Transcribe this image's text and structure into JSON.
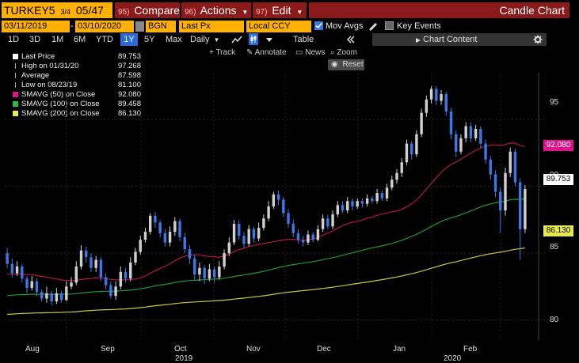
{
  "toolbar": {
    "ticker": "TURKEY5",
    "ticker_fraction": "3/4",
    "ticker_maturity": "05/47",
    "compare_num": "95)",
    "compare_label": "Compare",
    "actions_num": "96)",
    "actions_label": "Actions",
    "edit_num": "97)",
    "edit_label": "Edit",
    "chart_title": "Candle Chart"
  },
  "options": {
    "start_date": "03/11/2019",
    "end_date": "03/10/2020",
    "source": "BGN",
    "price_field": "Last Px",
    "currency": "Local CCY",
    "mov_avgs_label": "Mov Avgs",
    "key_events_label": "Key Events",
    "mov_avgs_checked": true,
    "key_events_checked": false
  },
  "periods": {
    "items": [
      "1D",
      "3D",
      "1M",
      "6M",
      "YTD",
      "1Y",
      "5Y",
      "Max"
    ],
    "selected": "1Y",
    "frequency": "Daily",
    "table_label": "Table",
    "chart_content_label": "Chart Content"
  },
  "tools": {
    "track": "Track",
    "annotate": "Annotate",
    "news": "News",
    "zoom": "Zoom",
    "reset": "Reset"
  },
  "legend": [
    {
      "label": "Last Price",
      "value": "89.753",
      "color": "#ffffff"
    },
    {
      "label": "High on 01/31/20",
      "value": "97.268",
      "color": ""
    },
    {
      "label": "Average",
      "value": "87.598",
      "color": ""
    },
    {
      "label": "Low on 08/23/19",
      "value": "81.100",
      "color": ""
    },
    {
      "label": "SMAVG (50)  on Close",
      "value": "92.080",
      "color": "#e0118a"
    },
    {
      "label": "SMAVG (100)  on Close",
      "value": "89.458",
      "color": "#2fb84a"
    },
    {
      "label": "SMAVG (200)  on Close",
      "value": "86.130",
      "color": "#e8e84a"
    }
  ],
  "price_tags": {
    "sma50": "92.080",
    "last": "89.753",
    "sma200": "86.130"
  },
  "colors": {
    "up": "#d0d0d0",
    "down": "#3b78e6",
    "sma50": "#b0154f",
    "sma100": "#1f9a2c",
    "sma200": "#c8c83a",
    "accent_orange": "#ffb000",
    "accent_red": "#8b1a1a"
  },
  "chart_data": {
    "type": "candlestick",
    "yticks": [
      "95",
      "90",
      "85",
      "80"
    ],
    "xticks": [
      "Aug",
      "Sep",
      "Oct",
      "Nov",
      "Dec",
      "Jan",
      "Feb"
    ],
    "years": [
      "2019",
      "2020"
    ],
    "ylim": [
      78.5,
      98.5
    ],
    "grid": true,
    "candles": [
      [
        0,
        85.0,
        84.2,
        85.4,
        83.9
      ],
      [
        1,
        84.2,
        83.5,
        84.6,
        83.2
      ],
      [
        2,
        83.5,
        84.0,
        84.4,
        83.3
      ],
      [
        3,
        84.0,
        83.1,
        84.2,
        82.8
      ],
      [
        4,
        83.1,
        82.4,
        83.3,
        82.0
      ],
      [
        5,
        82.4,
        82.9,
        83.3,
        82.2
      ],
      [
        6,
        82.9,
        82.1,
        83.1,
        81.8
      ],
      [
        7,
        82.1,
        81.6,
        82.3,
        81.4
      ],
      [
        8,
        81.6,
        82.0,
        82.5,
        81.3
      ],
      [
        9,
        82.0,
        81.4,
        82.2,
        81.1
      ],
      [
        10,
        81.4,
        82.0,
        82.4,
        81.2
      ],
      [
        11,
        82.0,
        81.5,
        82.2,
        81.3
      ],
      [
        12,
        81.5,
        82.5,
        82.9,
        81.4
      ],
      [
        13,
        82.5,
        82.8,
        83.2,
        82.3
      ],
      [
        14,
        82.8,
        84.0,
        84.4,
        82.6
      ],
      [
        15,
        84.0,
        85.2,
        85.6,
        83.8
      ],
      [
        16,
        85.2,
        84.7,
        85.5,
        84.3
      ],
      [
        17,
        84.7,
        83.9,
        85.0,
        83.6
      ],
      [
        18,
        83.9,
        84.5,
        84.8,
        83.6
      ],
      [
        19,
        84.5,
        83.2,
        84.7,
        82.9
      ],
      [
        20,
        83.2,
        82.6,
        83.5,
        82.3
      ],
      [
        21,
        82.6,
        81.8,
        82.9,
        81.6
      ],
      [
        22,
        81.8,
        82.5,
        82.9,
        81.5
      ],
      [
        23,
        82.5,
        83.6,
        84.0,
        82.3
      ],
      [
        24,
        83.6,
        83.1,
        83.9,
        82.8
      ],
      [
        25,
        83.1,
        84.3,
        84.7,
        82.9
      ],
      [
        26,
        84.3,
        85.1,
        85.4,
        84.1
      ],
      [
        27,
        85.1,
        86.0,
        86.3,
        84.9
      ],
      [
        28,
        86.0,
        86.6,
        86.9,
        85.8
      ],
      [
        29,
        86.6,
        87.8,
        88.0,
        86.4
      ],
      [
        30,
        87.8,
        87.3,
        88.1,
        86.9
      ],
      [
        31,
        87.3,
        86.5,
        87.5,
        86.2
      ],
      [
        32,
        86.5,
        85.8,
        86.8,
        85.5
      ],
      [
        33,
        85.8,
        86.6,
        87.0,
        85.5
      ],
      [
        34,
        86.6,
        87.4,
        87.7,
        86.3
      ],
      [
        35,
        87.4,
        86.2,
        87.6,
        85.9
      ],
      [
        36,
        86.2,
        85.3,
        86.5,
        85.0
      ],
      [
        37,
        85.3,
        84.6,
        85.6,
        84.2
      ],
      [
        38,
        84.6,
        83.4,
        84.9,
        83.0
      ],
      [
        39,
        83.4,
        83.9,
        84.3,
        82.9
      ],
      [
        40,
        83.9,
        83.1,
        84.1,
        82.7
      ],
      [
        41,
        83.1,
        83.8,
        84.2,
        82.9
      ],
      [
        42,
        83.8,
        83.2,
        84.0,
        82.8
      ],
      [
        43,
        83.2,
        84.0,
        84.4,
        83.0
      ],
      [
        44,
        84.0,
        85.0,
        85.3,
        83.8
      ],
      [
        45,
        85.0,
        85.8,
        86.2,
        84.8
      ],
      [
        46,
        85.8,
        87.2,
        87.5,
        85.6
      ],
      [
        47,
        87.2,
        86.3,
        87.5,
        86.0
      ],
      [
        48,
        86.3,
        85.7,
        86.6,
        85.4
      ],
      [
        49,
        85.7,
        86.8,
        87.1,
        85.5
      ],
      [
        50,
        86.8,
        86.1,
        87.0,
        85.8
      ],
      [
        51,
        86.1,
        86.9,
        87.3,
        85.9
      ],
      [
        52,
        86.9,
        87.6,
        87.9,
        86.7
      ],
      [
        53,
        87.6,
        88.5,
        88.9,
        87.4
      ],
      [
        54,
        88.5,
        89.4,
        89.6,
        88.3
      ],
      [
        55,
        89.4,
        89.0,
        89.7,
        88.6
      ],
      [
        56,
        89.0,
        88.0,
        89.2,
        87.7
      ],
      [
        57,
        88.0,
        87.2,
        88.3,
        86.9
      ],
      [
        58,
        87.2,
        86.5,
        87.5,
        86.2
      ],
      [
        59,
        86.5,
        86.0,
        86.8,
        85.7
      ],
      [
        60,
        86.0,
        85.8,
        86.3,
        85.5
      ],
      [
        61,
        85.8,
        86.4,
        86.7,
        85.6
      ],
      [
        62,
        86.4,
        86.0,
        86.6,
        85.8
      ],
      [
        63,
        86.0,
        86.8,
        87.1,
        85.9
      ],
      [
        64,
        86.8,
        87.6,
        87.9,
        86.6
      ],
      [
        65,
        87.6,
        87.0,
        87.9,
        86.8
      ],
      [
        66,
        87.0,
        87.9,
        88.2,
        86.8
      ],
      [
        67,
        87.9,
        88.6,
        88.9,
        87.7
      ],
      [
        68,
        88.6,
        88.2,
        88.9,
        88.0
      ],
      [
        69,
        88.2,
        88.9,
        89.2,
        88.0
      ],
      [
        70,
        88.9,
        88.5,
        89.1,
        88.2
      ],
      [
        71,
        88.5,
        88.9,
        89.1,
        88.3
      ],
      [
        72,
        88.9,
        88.7,
        89.1,
        88.4
      ],
      [
        73,
        88.7,
        89.1,
        89.4,
        88.5
      ],
      [
        74,
        89.1,
        88.9,
        89.3,
        88.7
      ],
      [
        75,
        88.9,
        89.5,
        89.8,
        88.7
      ],
      [
        76,
        89.5,
        89.1,
        89.7,
        88.9
      ],
      [
        77,
        89.1,
        89.9,
        90.2,
        88.9
      ],
      [
        78,
        89.9,
        90.5,
        90.8,
        89.7
      ],
      [
        79,
        90.5,
        91.0,
        91.3,
        90.2
      ],
      [
        80,
        91.0,
        91.8,
        92.1,
        90.7
      ],
      [
        81,
        91.8,
        93.2,
        93.5,
        91.6
      ],
      [
        82,
        93.2,
        92.4,
        93.4,
        92.0
      ],
      [
        83,
        92.4,
        93.9,
        94.2,
        92.2
      ],
      [
        84,
        93.9,
        95.5,
        95.8,
        93.7
      ],
      [
        85,
        95.5,
        96.5,
        96.8,
        95.2
      ],
      [
        86,
        96.5,
        97.3,
        97.5,
        96.2
      ],
      [
        87,
        97.3,
        96.4,
        97.5,
        96.1
      ],
      [
        88,
        96.4,
        96.9,
        97.2,
        96.1
      ],
      [
        89,
        96.9,
        95.6,
        97.1,
        95.3
      ],
      [
        90,
        95.6,
        93.9,
        95.9,
        93.5
      ],
      [
        91,
        93.9,
        92.6,
        94.2,
        92.2
      ],
      [
        92,
        92.6,
        93.6,
        93.9,
        92.4
      ],
      [
        93,
        93.6,
        94.5,
        94.8,
        93.3
      ],
      [
        94,
        94.5,
        93.6,
        94.8,
        93.3
      ],
      [
        95,
        93.6,
        94.3,
        94.6,
        93.4
      ],
      [
        96,
        94.3,
        93.2,
        94.5,
        92.9
      ],
      [
        97,
        93.2,
        92.0,
        93.5,
        91.7
      ],
      [
        98,
        92.0,
        90.9,
        92.3,
        90.5
      ],
      [
        99,
        90.9,
        89.6,
        91.2,
        89.2
      ],
      [
        100,
        89.6,
        88.2,
        89.9,
        86.5
      ],
      [
        101,
        88.2,
        91.0,
        91.4,
        87.8
      ],
      [
        102,
        91.0,
        92.6,
        92.9,
        90.7
      ],
      [
        103,
        92.6,
        90.3,
        92.8,
        90.0
      ],
      [
        104,
        90.3,
        86.8,
        90.6,
        84.5
      ],
      [
        105,
        86.8,
        89.8,
        90.1,
        86.5
      ]
    ]
  }
}
